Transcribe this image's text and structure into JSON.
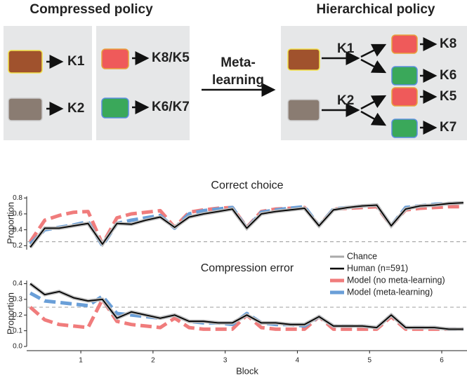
{
  "diagram": {
    "left_title": "Compressed policy",
    "right_title": "Hierarchical policy",
    "left_labels": [
      "K1",
      "K2",
      "K8/K5",
      "K6/K7"
    ],
    "arrow_label": [
      "Meta-",
      "learning"
    ],
    "right_labels": [
      "K1",
      "K2",
      "K8",
      "K6",
      "K5",
      "K7"
    ]
  },
  "chart_data": [
    {
      "type": "line",
      "title": "Correct choice",
      "ylabel": "Proportion",
      "xlim": [
        0.25,
        6.35
      ],
      "ylim": [
        0.15,
        0.82
      ],
      "yticks": [
        0.2,
        0.4,
        0.6,
        0.8
      ],
      "reference": {
        "name": "Chance",
        "color": "#aaaaaa",
        "value": 0.25
      },
      "x": [
        0.3,
        0.5,
        0.7,
        0.9,
        1.1,
        1.3,
        1.5,
        1.7,
        1.9,
        2.1,
        2.3,
        2.5,
        2.7,
        2.9,
        3.1,
        3.3,
        3.5,
        3.7,
        3.9,
        4.1,
        4.3,
        4.5,
        4.7,
        4.9,
        5.1,
        5.3,
        5.5,
        5.7,
        5.9,
        6.1,
        6.3
      ],
      "series": [
        {
          "name": "Human (n=591)",
          "color": "#000000",
          "values": [
            0.18,
            0.42,
            0.42,
            0.45,
            0.48,
            0.22,
            0.48,
            0.47,
            0.52,
            0.56,
            0.43,
            0.56,
            0.6,
            0.63,
            0.66,
            0.42,
            0.6,
            0.63,
            0.65,
            0.67,
            0.45,
            0.65,
            0.68,
            0.7,
            0.71,
            0.45,
            0.66,
            0.7,
            0.71,
            0.73,
            0.74
          ]
        },
        {
          "name": "Model (no meta-learning)",
          "color": "#f07c7c",
          "values": [
            0.25,
            0.52,
            0.58,
            0.62,
            0.63,
            0.22,
            0.55,
            0.6,
            0.62,
            0.64,
            0.43,
            0.62,
            0.65,
            0.67,
            0.68,
            0.43,
            0.63,
            0.66,
            0.67,
            0.68,
            0.45,
            0.66,
            0.67,
            0.68,
            0.69,
            0.45,
            0.65,
            0.67,
            0.68,
            0.69,
            0.69
          ]
        },
        {
          "name": "Model (meta-learning)",
          "color": "#6a9fd8",
          "values": [
            0.22,
            0.4,
            0.43,
            0.46,
            0.5,
            0.2,
            0.48,
            0.52,
            0.55,
            0.58,
            0.42,
            0.6,
            0.64,
            0.66,
            0.68,
            0.42,
            0.62,
            0.65,
            0.67,
            0.69,
            0.45,
            0.66,
            0.68,
            0.7,
            0.71,
            0.45,
            0.68,
            0.7,
            0.72,
            0.73,
            0.74
          ]
        }
      ]
    },
    {
      "type": "line",
      "title": "Compression error",
      "ylabel": "Proportion",
      "xlabel": "Block",
      "xlim": [
        0.25,
        6.35
      ],
      "ylim": [
        0,
        0.42
      ],
      "yticks": [
        {
          "value": 0,
          "label": "0.0"
        },
        0.1,
        0.2,
        0.3,
        0.4
      ],
      "xticks": [
        1,
        2,
        3,
        4,
        5,
        6
      ],
      "reference": {
        "color": "#aaaaaa",
        "value": 0.25
      },
      "x": [
        0.3,
        0.5,
        0.7,
        0.9,
        1.1,
        1.3,
        1.5,
        1.7,
        1.9,
        2.1,
        2.3,
        2.5,
        2.7,
        2.9,
        3.1,
        3.3,
        3.5,
        3.7,
        3.9,
        4.1,
        4.3,
        4.5,
        4.7,
        4.9,
        5.1,
        5.3,
        5.5,
        5.7,
        5.9,
        6.1,
        6.3
      ],
      "series": [
        {
          "color": "#000000",
          "values": [
            0.4,
            0.33,
            0.35,
            0.31,
            0.29,
            0.3,
            0.18,
            0.22,
            0.2,
            0.18,
            0.2,
            0.16,
            0.16,
            0.15,
            0.15,
            0.2,
            0.15,
            0.15,
            0.14,
            0.14,
            0.19,
            0.13,
            0.13,
            0.13,
            0.12,
            0.2,
            0.12,
            0.12,
            0.12,
            0.11,
            0.11
          ]
        },
        {
          "color": "#f07c7c",
          "values": [
            0.25,
            0.17,
            0.14,
            0.13,
            0.12,
            0.3,
            0.16,
            0.14,
            0.13,
            0.12,
            0.18,
            0.12,
            0.11,
            0.11,
            0.11,
            0.2,
            0.12,
            0.11,
            0.11,
            0.11,
            0.19,
            0.11,
            0.11,
            0.11,
            0.11,
            0.19,
            0.11,
            0.11,
            0.11,
            0.11,
            0.11
          ]
        },
        {
          "color": "#6a9fd8",
          "values": [
            0.34,
            0.29,
            0.28,
            0.27,
            0.26,
            0.32,
            0.21,
            0.2,
            0.19,
            0.18,
            0.2,
            0.16,
            0.15,
            0.15,
            0.14,
            0.21,
            0.15,
            0.14,
            0.14,
            0.13,
            0.19,
            0.13,
            0.13,
            0.13,
            0.12,
            0.2,
            0.12,
            0.12,
            0.12,
            0.11,
            0.11
          ]
        }
      ]
    }
  ]
}
